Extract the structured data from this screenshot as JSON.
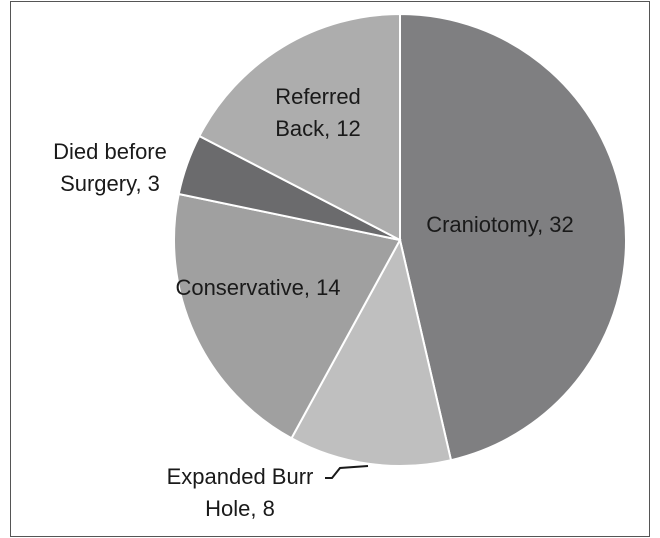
{
  "chart_data": {
    "type": "pie",
    "values": [
      32,
      8,
      14,
      3,
      12
    ],
    "value_labels": [
      "Craniotomy, 32",
      "Expanded Burr Hole, 8",
      "Conservative, 14",
      "Died before Surgery, 3",
      "Referred Back, 12"
    ],
    "colors": [
      "#7f7f81",
      "#bfbfbf",
      "#a0a0a0",
      "#6b6b6d",
      "#adadad"
    ],
    "start_angle": 0,
    "direction": "clockwise"
  }
}
